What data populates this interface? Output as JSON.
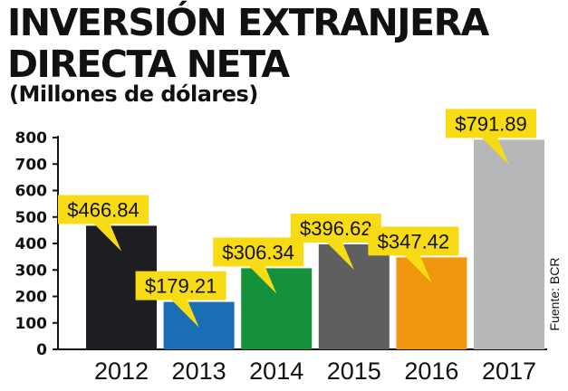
{
  "header": {
    "title": "INVERSIÓN EXTRANJERA DIRECTA NETA",
    "subtitle": "(Millones de dólares)"
  },
  "source": "Fuente: BCR",
  "chart_data": {
    "type": "bar",
    "title": "INVERSIÓN EXTRANJERA DIRECTA NETA",
    "subtitle": "(Millones de dólares)",
    "xlabel": "",
    "ylabel": "",
    "ylim": [
      0,
      800
    ],
    "yticks": [
      0,
      100,
      200,
      300,
      400,
      500,
      600,
      700,
      800
    ],
    "grid": false,
    "legend": "none",
    "categories": [
      "2012",
      "2013",
      "2014",
      "2015",
      "2016",
      "2017"
    ],
    "values": [
      466.84,
      179.21,
      306.34,
      396.62,
      347.42,
      791.89
    ],
    "data_labels": [
      "$466.84",
      "$179.21",
      "$306.34",
      "$396.62",
      "$347.42",
      "$791.89"
    ],
    "bar_colors": [
      "#1e1e22",
      "#1a6fb4",
      "#15903b",
      "#5f5f5f",
      "#f0960f",
      "#b5b7b8"
    ],
    "label_color": "#f6db15"
  }
}
